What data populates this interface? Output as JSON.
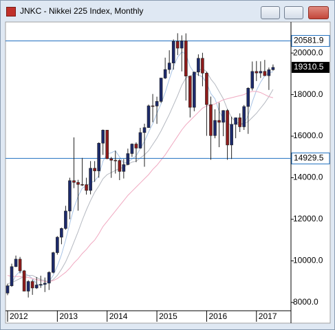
{
  "chart_data": {
    "type": "candlestick",
    "title": "JNKC - Nikkei 225 Index, Monthly",
    "categories": [
      "2012",
      null,
      null,
      null,
      null,
      null,
      null,
      null,
      null,
      null,
      null,
      null,
      "2013",
      null,
      null,
      null,
      null,
      null,
      null,
      null,
      null,
      null,
      null,
      null,
      "2014",
      null,
      null,
      null,
      null,
      null,
      null,
      null,
      null,
      null,
      null,
      null,
      "2015",
      null,
      null,
      null,
      null,
      null,
      null,
      null,
      null,
      null,
      null,
      null,
      "2016",
      null,
      null,
      null,
      null,
      null,
      null,
      null,
      null,
      null,
      null,
      null,
      "2017",
      null,
      null,
      null,
      null
    ],
    "open": [
      8450,
      8802,
      9723,
      10083,
      9521,
      8543,
      9007,
      8695,
      8840,
      8870,
      8928,
      9446,
      10395,
      11139,
      11559,
      12398,
      13860,
      13775,
      13677,
      13668,
      13389,
      14456,
      14328,
      15662,
      16291,
      14915,
      14841,
      14828,
      14304,
      14632,
      15162,
      15621,
      15425,
      16173,
      16413,
      17459,
      17450,
      17674,
      18797,
      19206,
      19520,
      20563,
      20235,
      20585,
      18890,
      17388,
      19083,
      19747,
      19034,
      17518,
      16027,
      16759,
      16666,
      17235,
      15576,
      16569,
      16887,
      16450,
      17425,
      18308,
      19114,
      19041,
      19119,
      18909,
      19197
    ],
    "high": [
      8900,
      9866,
      10255,
      10190,
      9560,
      9070,
      9100,
      9222,
      9288,
      9200,
      9500,
      10433,
      11190,
      11600,
      12650,
      14000,
      15942,
      13900,
      14953,
      14000,
      14800,
      14800,
      15700,
      16320,
      16300,
      15000,
      15300,
      14900,
      14900,
      15400,
      15650,
      15700,
      16400,
      16600,
      17520,
      18030,
      17900,
      18800,
      19778,
      20133,
      20654,
      20952,
      20850,
      20946,
      18900,
      19100,
      19937,
      20012,
      19100,
      17905,
      17291,
      17613,
      17251,
      17300,
      16938,
      16900,
      17100,
      17500,
      18350,
      19592,
      19615,
      19600,
      19668,
      19300,
      19450
    ],
    "low": [
      8350,
      8750,
      9700,
      9400,
      8540,
      8238,
      8365,
      8650,
      8700,
      8500,
      8600,
      9400,
      10300,
      10800,
      11500,
      12000,
      13500,
      12415,
      13600,
      13188,
      13200,
      13800,
      14000,
      15100,
      14900,
      13995,
      14200,
      13885,
      13964,
      14600,
      15000,
      14750,
      15400,
      14529,
      16400,
      16673,
      16592,
      17600,
      18750,
      19000,
      19200,
      19900,
      19115,
      17714,
      16901,
      17200,
      18900,
      18400,
      16017,
      14865,
      15900,
      15471,
      16000,
      14864,
      14900,
      15900,
      16200,
      16300,
      16111,
      18200,
      18650,
      18800,
      18900,
      18224,
      19150
    ],
    "close": [
      8802,
      9723,
      10083,
      9521,
      8543,
      9007,
      8695,
      8840,
      8870,
      8928,
      9446,
      10395,
      11139,
      11559,
      12398,
      13860,
      13775,
      13677,
      13668,
      13389,
      14456,
      14328,
      15662,
      16291,
      14915,
      14841,
      14828,
      14304,
      14632,
      15162,
      15621,
      15425,
      16173,
      16413,
      17459,
      17450,
      17674,
      18797,
      19206,
      19520,
      20563,
      20235,
      20585,
      18890,
      17388,
      19083,
      19747,
      19034,
      17518,
      16027,
      16759,
      16666,
      17235,
      15576,
      16569,
      16887,
      16450,
      17425,
      18308,
      19114,
      19041,
      19119,
      18909,
      19197,
      19310.5
    ],
    "up_color": "#1c2a6b",
    "down_color": "#8e1b1b",
    "moving_averages": [
      {
        "color": "#a8c4e6",
        "values": [
          8700,
          8900,
          9300,
          9500,
          9400,
          9300,
          9150,
          8900,
          8800,
          8870,
          9000,
          9300,
          9750,
          10300,
          11000,
          11800,
          12550,
          13100,
          13500,
          13600,
          13750,
          13850,
          14100,
          14800,
          15150,
          15200,
          15300,
          15000,
          14700,
          14750,
          14900,
          15050,
          15400,
          15750,
          16200,
          16600,
          17100,
          17550,
          18100,
          18750,
          19350,
          19800,
          20050,
          19950,
          19350,
          19050,
          18950,
          18850,
          18550,
          18050,
          17800,
          17200,
          16850,
          16600,
          16550,
          16600,
          16550,
          16600,
          17000,
          17650,
          18200,
          18600,
          18900,
          19050,
          19100
        ]
      },
      {
        "color": "#b4b8c0",
        "values": [
          8900,
          8950,
          9050,
          9150,
          9250,
          9300,
          9300,
          9200,
          9100,
          9050,
          9000,
          9100,
          9300,
          9600,
          9950,
          10400,
          10900,
          11400,
          11950,
          12450,
          12900,
          13300,
          13600,
          13950,
          14150,
          14250,
          14350,
          14450,
          14500,
          14650,
          14750,
          14800,
          14950,
          15100,
          15300,
          15600,
          15900,
          16250,
          16650,
          17050,
          17500,
          17950,
          18450,
          18800,
          18900,
          19000,
          19150,
          19250,
          19100,
          18750,
          18500,
          18150,
          17800,
          17300,
          16900,
          16700,
          16600,
          16600,
          16700,
          16900,
          17100,
          17350,
          17600,
          17900,
          18250
        ]
      },
      {
        "color": "#f0a8c0",
        "values": [
          9300,
          9250,
          9250,
          9250,
          9200,
          9200,
          9150,
          9100,
          9050,
          9000,
          9000,
          9050,
          9150,
          9300,
          9450,
          9650,
          9900,
          10100,
          10350,
          10550,
          10800,
          11000,
          11300,
          11650,
          11900,
          12150,
          12400,
          12650,
          12900,
          13150,
          13350,
          13550,
          13750,
          13950,
          14150,
          14400,
          14600,
          14850,
          15100,
          15400,
          15700,
          16000,
          16300,
          16550,
          16750,
          16950,
          17150,
          17350,
          17450,
          17500,
          17550,
          17650,
          17750,
          17800,
          17850,
          17900,
          17950,
          18000,
          18100,
          18150,
          18150,
          18100,
          18000,
          17900,
          17850
        ]
      }
    ],
    "horizontal_lines": [
      20581.9,
      14929.5
    ],
    "line_color": "#1f6fc0",
    "ylim": [
      7600,
      21460
    ],
    "yticks": [
      {
        "value": 8000,
        "label": "8000.0"
      },
      {
        "value": 10000,
        "label": "10000.0"
      },
      {
        "value": 12000,
        "label": "12000.0"
      },
      {
        "value": 14000,
        "label": "14000.0"
      },
      {
        "value": 16000,
        "label": "16000.0"
      },
      {
        "value": 18000,
        "label": "18000.0"
      },
      {
        "value": 20000,
        "label": "20000.0"
      }
    ]
  }
}
